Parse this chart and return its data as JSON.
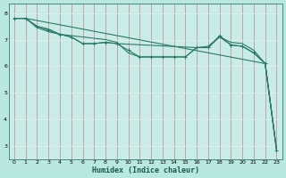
{
  "xlabel": "Humidex (Indice chaleur)",
  "bg_color": "#b8e8e0",
  "plot_bg_color": "#c8ede8",
  "grid_color_h": "#e8f8f5",
  "grid_color_v": "#e0a0a0",
  "line_color": "#2a7a65",
  "xlim": [
    -0.5,
    23.5
  ],
  "ylim": [
    2.5,
    8.35
  ],
  "yticks": [
    3,
    4,
    5,
    6,
    7,
    8
  ],
  "xticks": [
    0,
    1,
    2,
    3,
    4,
    5,
    6,
    7,
    8,
    9,
    10,
    11,
    12,
    13,
    14,
    15,
    16,
    17,
    18,
    19,
    20,
    21,
    22,
    23
  ],
  "series": [
    {
      "x": [
        0,
        1,
        2,
        3,
        4,
        5,
        6,
        7,
        8,
        9,
        10,
        11,
        12,
        13,
        14,
        15,
        16,
        17,
        18,
        19,
        20,
        21,
        22,
        23
      ],
      "y": [
        7.8,
        7.8,
        7.5,
        7.4,
        7.2,
        7.15,
        7.1,
        7.05,
        7.0,
        6.9,
        6.5,
        6.35,
        6.35,
        6.35,
        6.35,
        6.35,
        6.7,
        6.75,
        7.1,
        6.8,
        6.75,
        6.5,
        6.1,
        2.85
      ],
      "has_markers": false
    },
    {
      "x": [
        0,
        1,
        2,
        3,
        4,
        5,
        6,
        7,
        8,
        9,
        10,
        11,
        12,
        13,
        14,
        15,
        16,
        17,
        18,
        19,
        20,
        21,
        22,
        23
      ],
      "y": [
        7.8,
        7.8,
        7.5,
        7.35,
        7.2,
        7.1,
        6.85,
        6.85,
        6.9,
        6.85,
        6.6,
        6.35,
        6.35,
        6.35,
        6.35,
        6.35,
        6.7,
        6.7,
        7.15,
        6.8,
        6.75,
        6.5,
        6.1,
        2.85
      ],
      "has_markers": true
    },
    {
      "x": [
        0,
        1,
        2,
        3,
        4,
        5,
        6,
        7,
        8,
        9,
        16,
        17,
        18,
        19,
        20,
        21,
        22,
        23
      ],
      "y": [
        7.8,
        7.8,
        7.45,
        7.3,
        7.2,
        7.1,
        6.85,
        6.85,
        6.9,
        6.85,
        6.7,
        6.7,
        7.1,
        6.9,
        6.85,
        6.6,
        6.1,
        2.85
      ],
      "has_markers": false
    },
    {
      "x": [
        0,
        1,
        22,
        23
      ],
      "y": [
        7.8,
        7.8,
        6.1,
        2.85
      ],
      "has_markers": false
    }
  ]
}
